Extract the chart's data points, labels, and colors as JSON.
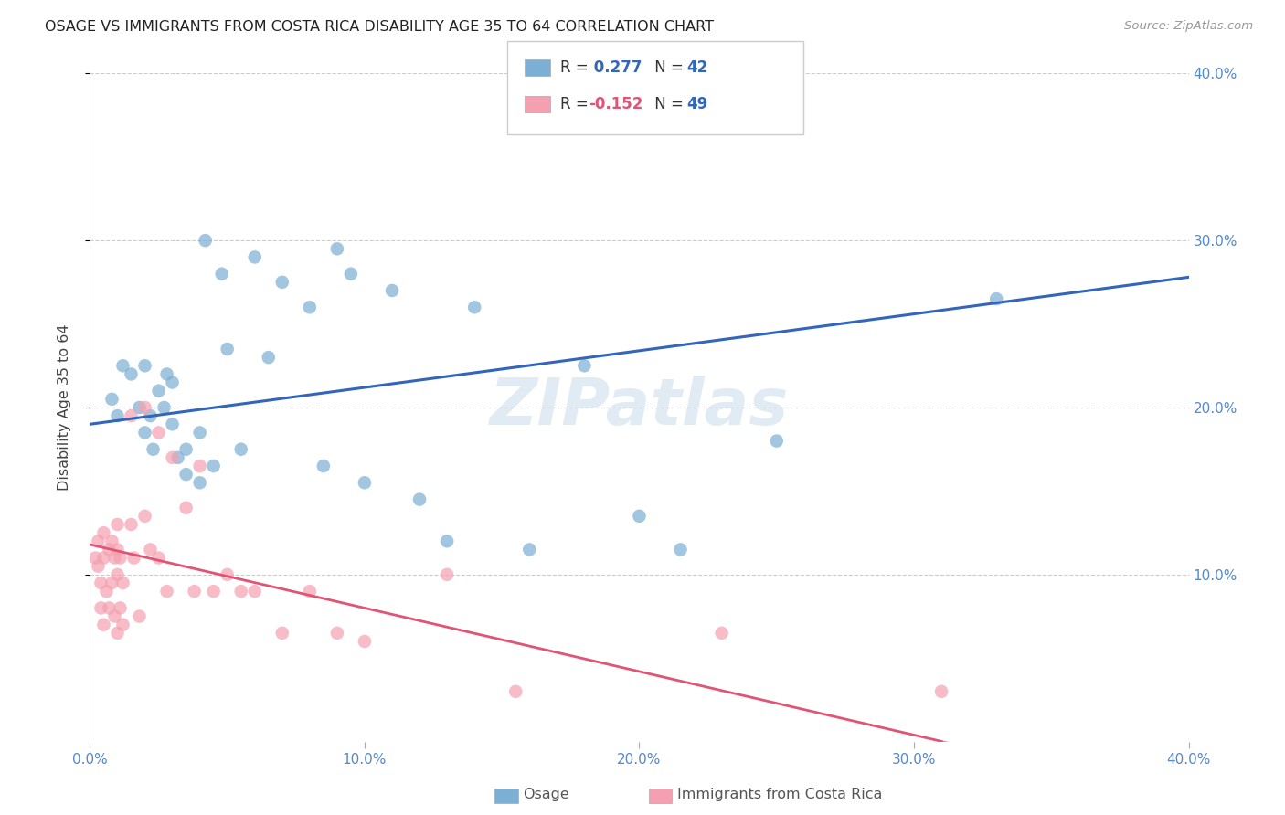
{
  "title": "OSAGE VS IMMIGRANTS FROM COSTA RICA DISABILITY AGE 35 TO 64 CORRELATION CHART",
  "source": "Source: ZipAtlas.com",
  "ylabel": "Disability Age 35 to 64",
  "xlim": [
    0.0,
    0.4
  ],
  "ylim": [
    0.0,
    0.4
  ],
  "xticks": [
    0.0,
    0.1,
    0.2,
    0.3,
    0.4
  ],
  "yticks": [
    0.1,
    0.2,
    0.3,
    0.4
  ],
  "xticklabels": [
    "0.0%",
    "10.0%",
    "20.0%",
    "30.0%",
    "40.0%"
  ],
  "yticklabels": [
    "10.0%",
    "20.0%",
    "30.0%",
    "40.0%"
  ],
  "blue_scatter_color": "#7BAFD4",
  "pink_scatter_color": "#F4A0B0",
  "blue_line_color": "#3366BB",
  "pink_line_color": "#E05575",
  "tick_label_color": "#5588CC",
  "watermark": "ZIPatlas",
  "blue_R": 0.277,
  "blue_N": 42,
  "pink_R": -0.152,
  "pink_N": 49,
  "blue_intercept": 0.19,
  "blue_slope": 0.22,
  "pink_intercept": 0.118,
  "pink_slope": -0.38,
  "blue_x": [
    0.008,
    0.01,
    0.012,
    0.015,
    0.018,
    0.02,
    0.02,
    0.022,
    0.023,
    0.025,
    0.027,
    0.028,
    0.03,
    0.03,
    0.032,
    0.035,
    0.035,
    0.04,
    0.04,
    0.042,
    0.045,
    0.048,
    0.05,
    0.055,
    0.06,
    0.065,
    0.07,
    0.08,
    0.085,
    0.09,
    0.095,
    0.1,
    0.11,
    0.12,
    0.13,
    0.14,
    0.16,
    0.18,
    0.2,
    0.215,
    0.25,
    0.33
  ],
  "blue_y": [
    0.205,
    0.195,
    0.225,
    0.22,
    0.2,
    0.225,
    0.185,
    0.195,
    0.175,
    0.21,
    0.2,
    0.22,
    0.215,
    0.19,
    0.17,
    0.175,
    0.16,
    0.185,
    0.155,
    0.3,
    0.165,
    0.28,
    0.235,
    0.175,
    0.29,
    0.23,
    0.275,
    0.26,
    0.165,
    0.295,
    0.28,
    0.155,
    0.27,
    0.145,
    0.12,
    0.26,
    0.115,
    0.225,
    0.135,
    0.115,
    0.18,
    0.265
  ],
  "pink_x": [
    0.002,
    0.003,
    0.003,
    0.004,
    0.004,
    0.005,
    0.005,
    0.005,
    0.006,
    0.007,
    0.007,
    0.008,
    0.008,
    0.009,
    0.009,
    0.01,
    0.01,
    0.01,
    0.01,
    0.011,
    0.011,
    0.012,
    0.012,
    0.015,
    0.015,
    0.016,
    0.018,
    0.02,
    0.02,
    0.022,
    0.025,
    0.025,
    0.028,
    0.03,
    0.035,
    0.038,
    0.04,
    0.045,
    0.05,
    0.055,
    0.06,
    0.07,
    0.08,
    0.09,
    0.1,
    0.13,
    0.155,
    0.23,
    0.31
  ],
  "pink_y": [
    0.11,
    0.12,
    0.105,
    0.095,
    0.08,
    0.125,
    0.11,
    0.07,
    0.09,
    0.115,
    0.08,
    0.12,
    0.095,
    0.11,
    0.075,
    0.13,
    0.115,
    0.1,
    0.065,
    0.11,
    0.08,
    0.095,
    0.07,
    0.195,
    0.13,
    0.11,
    0.075,
    0.2,
    0.135,
    0.115,
    0.185,
    0.11,
    0.09,
    0.17,
    0.14,
    0.09,
    0.165,
    0.09,
    0.1,
    0.09,
    0.09,
    0.065,
    0.09,
    0.065,
    0.06,
    0.1,
    0.03,
    0.065,
    0.03
  ],
  "background_color": "#ffffff",
  "grid_color": "#cccccc",
  "bottom_legend_osage": "Osage",
  "bottom_legend_cr": "Immigrants from Costa Rica"
}
